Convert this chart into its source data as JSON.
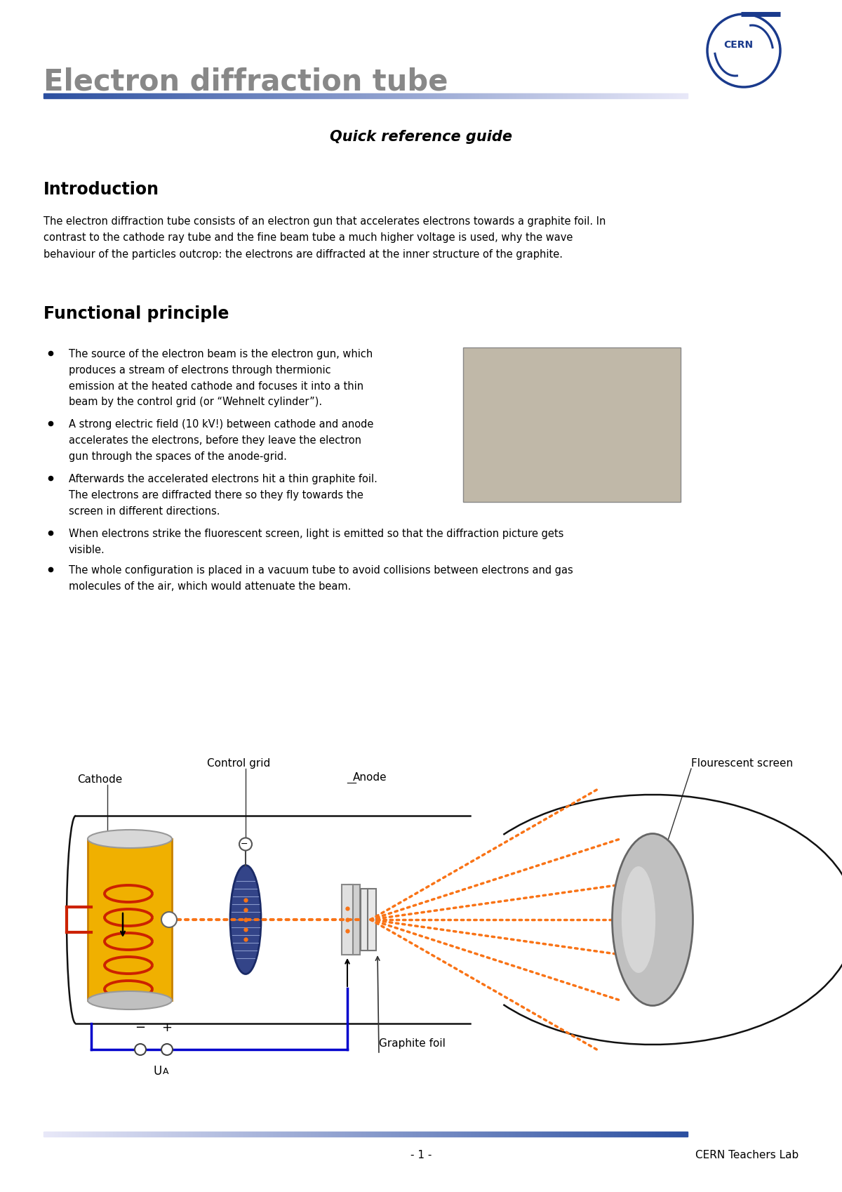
{
  "title": "Electron diffraction tube",
  "subtitle": "Quick reference guide",
  "section1_title": "Introduction",
  "section1_text": "The electron diffraction tube consists of an electron gun that accelerates electrons towards a graphite foil. In\ncontrast to the cathode ray tube and the fine beam tube a much higher voltage is used, why the wave\nbehaviour of the particles outcrop: the electrons are diffracted at the inner structure of the graphite.",
  "section2_title": "Functional principle",
  "bullet1_line1": "The source of the electron beam is the electron gun, which",
  "bullet1_line2": "produces a stream of electrons through thermionic",
  "bullet1_line3": "emission at the heated cathode and focuses it into a thin",
  "bullet1_line4": "beam by the control grid (or “Wehnelt cylinder”).",
  "bullet2_line1": "A strong electric field (10 kV!) between cathode and anode",
  "bullet2_line2": "accelerates the electrons, before they leave the electron",
  "bullet2_line3": "gun through the spaces of the anode-grid.",
  "bullet3_line1": "Afterwards the accelerated electrons hit a thin graphite foil.",
  "bullet3_line2": "The electrons are diffracted there so they fly towards the",
  "bullet3_line3": "screen in different directions.",
  "bullet4": "When electrons strike the fluorescent screen, light is emitted so that the diffraction picture gets\nvisible.",
  "bullet5": "The whole configuration is placed in a vacuum tube to avoid collisions between electrons and gas\nmolecules of the air, which would attenuate the beam.",
  "lbl_cathode": "Cathode",
  "lbl_control_grid": "Control grid",
  "lbl_anode": "Anode",
  "lbl_graphite": "Graphite foil",
  "lbl_screen": "Flourescent screen",
  "lbl_ua": "U",
  "lbl_ua_sub": "A",
  "lbl_minus": "−",
  "lbl_plus": "+",
  "footer_page": "- 1 -",
  "footer_right": "CERN Teachers Lab",
  "bg_color": "#ffffff",
  "title_color": "#888888",
  "cern_blue": "#1a3a8c",
  "orange": "#f97316",
  "cathode_yellow": "#f0b000",
  "cathode_edge": "#c88000",
  "heater_red": "#cc2200",
  "grid_blue_fill": "#334488",
  "grid_blue_edge": "#1a2a66",
  "wire_blue": "#0000cc",
  "dark_line": "#111111",
  "gray_screen": "#b0b0b0"
}
